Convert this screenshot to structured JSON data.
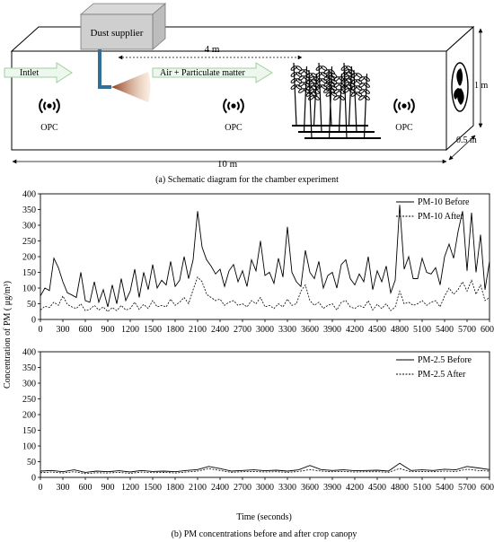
{
  "schematic": {
    "dust_supplier": "Dust supplier",
    "inlet": "Intlet",
    "flow": "Air + Particulate matter",
    "distance_crop": "4 m",
    "length": "10 m",
    "height": "1 m",
    "width": "0.5 m",
    "sensor_label": "OPC",
    "caption": "(a) Schematic diagram for the chamber experiment"
  },
  "shared": {
    "ylabel": "Concentration of PM ( μg/m³)",
    "xlabel": "Time (seconds)",
    "caption": "(b) PM concentrations before and after crop canopy"
  },
  "chart_data": [
    {
      "type": "line",
      "xlim": [
        0,
        6000
      ],
      "ylim": [
        0,
        400
      ],
      "x_ticks": [
        "0",
        "300",
        "600",
        "900",
        "1200",
        "1500",
        "1800",
        "2100",
        "2400",
        "2700",
        "3000",
        "3300",
        "3600",
        "3900",
        "4200",
        "4500",
        "4800",
        "5100",
        "5400",
        "5700",
        "6000"
      ],
      "y_ticks": [
        "0",
        "50",
        "100",
        "150",
        "200",
        "250",
        "300",
        "350",
        "400"
      ],
      "legend_position": "top-right",
      "series": [
        {
          "name": "PM-10 Before",
          "style": "solid",
          "x": [
            0,
            60,
            120,
            180,
            240,
            300,
            360,
            420,
            480,
            540,
            600,
            660,
            720,
            780,
            840,
            900,
            960,
            1020,
            1080,
            1140,
            1200,
            1260,
            1320,
            1380,
            1440,
            1500,
            1560,
            1620,
            1680,
            1740,
            1800,
            1860,
            1920,
            1980,
            2040,
            2100,
            2160,
            2220,
            2280,
            2340,
            2400,
            2460,
            2520,
            2580,
            2640,
            2700,
            2760,
            2820,
            2880,
            2940,
            3000,
            3060,
            3120,
            3180,
            3240,
            3300,
            3360,
            3420,
            3480,
            3540,
            3600,
            3660,
            3720,
            3780,
            3840,
            3900,
            3960,
            4020,
            4080,
            4140,
            4200,
            4260,
            4320,
            4380,
            4440,
            4500,
            4560,
            4620,
            4680,
            4740,
            4800,
            4860,
            4920,
            4980,
            5040,
            5100,
            5160,
            5220,
            5280,
            5340,
            5400,
            5460,
            5520,
            5580,
            5640,
            5700,
            5760,
            5820,
            5880,
            5940,
            6000
          ],
          "values": [
            75,
            100,
            92,
            195,
            165,
            120,
            85,
            78,
            70,
            150,
            60,
            55,
            120,
            55,
            95,
            40,
            110,
            50,
            130,
            60,
            90,
            160,
            70,
            150,
            95,
            175,
            100,
            125,
            110,
            185,
            105,
            125,
            200,
            130,
            190,
            345,
            230,
            190,
            170,
            145,
            160,
            105,
            155,
            175,
            120,
            155,
            105,
            190,
            155,
            250,
            140,
            150,
            115,
            195,
            135,
            295,
            150,
            120,
            105,
            220,
            150,
            130,
            185,
            100,
            140,
            150,
            100,
            175,
            190,
            130,
            110,
            145,
            120,
            200,
            95,
            155,
            120,
            170,
            85,
            125,
            365,
            160,
            200,
            130,
            130,
            195,
            150,
            145,
            165,
            110,
            200,
            240,
            195,
            280,
            345,
            155,
            340,
            150,
            270,
            95,
            185
          ]
        },
        {
          "name": "PM-10 After",
          "style": "dashed",
          "x": [
            0,
            60,
            120,
            180,
            240,
            300,
            360,
            420,
            480,
            540,
            600,
            660,
            720,
            780,
            840,
            900,
            960,
            1020,
            1080,
            1140,
            1200,
            1260,
            1320,
            1380,
            1440,
            1500,
            1560,
            1620,
            1680,
            1740,
            1800,
            1860,
            1920,
            1980,
            2040,
            2100,
            2160,
            2220,
            2280,
            2340,
            2400,
            2460,
            2520,
            2580,
            2640,
            2700,
            2760,
            2820,
            2880,
            2940,
            3000,
            3060,
            3120,
            3180,
            3240,
            3300,
            3360,
            3420,
            3480,
            3540,
            3600,
            3660,
            3720,
            3780,
            3840,
            3900,
            3960,
            4020,
            4080,
            4140,
            4200,
            4260,
            4320,
            4380,
            4440,
            4500,
            4560,
            4620,
            4680,
            4740,
            4800,
            4860,
            4920,
            4980,
            5040,
            5100,
            5160,
            5220,
            5280,
            5340,
            5400,
            5460,
            5520,
            5580,
            5640,
            5700,
            5760,
            5820,
            5880,
            5940,
            6000
          ],
          "values": [
            30,
            42,
            38,
            55,
            45,
            75,
            48,
            40,
            35,
            50,
            28,
            32,
            45,
            30,
            40,
            25,
            38,
            28,
            45,
            30,
            35,
            55,
            32,
            48,
            35,
            60,
            40,
            45,
            40,
            65,
            45,
            55,
            70,
            50,
            95,
            135,
            120,
            80,
            70,
            60,
            65,
            45,
            55,
            60,
            45,
            50,
            40,
            60,
            50,
            70,
            40,
            45,
            35,
            50,
            40,
            65,
            45,
            50,
            90,
            110,
            60,
            45,
            55,
            35,
            45,
            50,
            30,
            55,
            60,
            40,
            35,
            45,
            38,
            60,
            30,
            48,
            35,
            50,
            28,
            40,
            90,
            50,
            55,
            45,
            50,
            60,
            45,
            55,
            60,
            40,
            75,
            100,
            80,
            95,
            120,
            90,
            125,
            80,
            110,
            60,
            70
          ]
        }
      ]
    },
    {
      "type": "line",
      "xlim": [
        0,
        6000
      ],
      "ylim": [
        0,
        400
      ],
      "x_ticks": [
        "0",
        "300",
        "600",
        "900",
        "1200",
        "1500",
        "1800",
        "2100",
        "2400",
        "2700",
        "3000",
        "3300",
        "3600",
        "3900",
        "4200",
        "4500",
        "4800",
        "5100",
        "5400",
        "5700",
        "6000"
      ],
      "y_ticks": [
        "0",
        "50",
        "100",
        "150",
        "200",
        "250",
        "300",
        "350",
        "400"
      ],
      "legend_position": "top-right",
      "series": [
        {
          "name": "PM-2.5 Before",
          "style": "solid",
          "x": [
            0,
            150,
            300,
            450,
            600,
            750,
            900,
            1050,
            1200,
            1350,
            1500,
            1650,
            1800,
            1950,
            2100,
            2250,
            2400,
            2550,
            2700,
            2850,
            3000,
            3150,
            3300,
            3450,
            3600,
            3750,
            3900,
            4050,
            4200,
            4350,
            4500,
            4650,
            4800,
            4950,
            5100,
            5250,
            5400,
            5550,
            5700,
            5850,
            6000
          ],
          "values": [
            20,
            22,
            18,
            24,
            16,
            20,
            18,
            21,
            17,
            22,
            19,
            20,
            18,
            22,
            25,
            35,
            28,
            20,
            22,
            24,
            21,
            23,
            20,
            24,
            38,
            25,
            22,
            24,
            21,
            22,
            23,
            20,
            45,
            22,
            24,
            22,
            26,
            24,
            35,
            30,
            25
          ]
        },
        {
          "name": "PM-2.5 After",
          "style": "dashed",
          "x": [
            0,
            150,
            300,
            450,
            600,
            750,
            900,
            1050,
            1200,
            1350,
            1500,
            1650,
            1800,
            1950,
            2100,
            2250,
            2400,
            2550,
            2700,
            2850,
            3000,
            3150,
            3300,
            3450,
            3600,
            3750,
            3900,
            4050,
            4200,
            4350,
            4500,
            4650,
            4800,
            4950,
            5100,
            5250,
            5400,
            5550,
            5700,
            5850,
            6000
          ],
          "values": [
            15,
            17,
            14,
            18,
            12,
            15,
            14,
            16,
            13,
            17,
            15,
            16,
            14,
            17,
            20,
            28,
            22,
            16,
            18,
            19,
            17,
            18,
            16,
            19,
            25,
            20,
            18,
            19,
            17,
            18,
            18,
            16,
            28,
            18,
            19,
            18,
            20,
            19,
            26,
            22,
            20
          ]
        }
      ]
    }
  ]
}
